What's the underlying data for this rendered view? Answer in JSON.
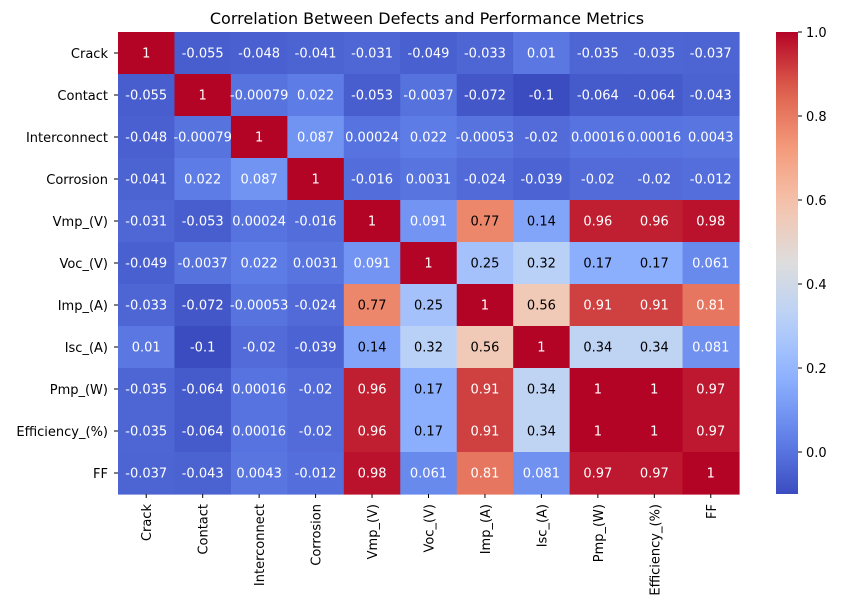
{
  "chart_data": {
    "type": "heatmap",
    "title": "Correlation Between Defects and Performance Metrics",
    "xlabel": "",
    "ylabel": "",
    "labels": [
      "Crack",
      "Contact",
      "Interconnect",
      "Corrosion",
      "Vmp_(V)",
      "Voc_(V)",
      "Imp_(A)",
      "Isc_(A)",
      "Pmp_(W)",
      "Efficiency_(%)",
      "FF"
    ],
    "values": [
      [
        1,
        -0.055,
        -0.048,
        -0.041,
        -0.031,
        -0.049,
        -0.033,
        0.01,
        -0.035,
        -0.035,
        -0.037
      ],
      [
        -0.055,
        1,
        -0.00079,
        0.022,
        -0.053,
        -0.0037,
        -0.072,
        -0.1,
        -0.064,
        -0.064,
        -0.043
      ],
      [
        -0.048,
        -0.00079,
        1,
        0.087,
        0.00024,
        0.022,
        -0.00053,
        -0.02,
        0.00016,
        0.00016,
        0.0043
      ],
      [
        -0.041,
        0.022,
        0.087,
        1,
        -0.016,
        0.0031,
        -0.024,
        -0.039,
        -0.02,
        -0.02,
        -0.012
      ],
      [
        -0.031,
        -0.053,
        0.00024,
        -0.016,
        1,
        0.091,
        0.77,
        0.14,
        0.96,
        0.96,
        0.98
      ],
      [
        -0.049,
        -0.0037,
        0.022,
        0.0031,
        0.091,
        1,
        0.25,
        0.32,
        0.17,
        0.17,
        0.061
      ],
      [
        -0.033,
        -0.072,
        -0.00053,
        -0.024,
        0.77,
        0.25,
        1,
        0.56,
        0.91,
        0.91,
        0.81
      ],
      [
        0.01,
        -0.1,
        -0.02,
        -0.039,
        0.14,
        0.32,
        0.56,
        1,
        0.34,
        0.34,
        0.081
      ],
      [
        -0.035,
        -0.064,
        0.00016,
        -0.02,
        0.96,
        0.17,
        0.91,
        0.34,
        1,
        1,
        0.97
      ],
      [
        -0.035,
        -0.064,
        0.00016,
        -0.02,
        0.96,
        0.17,
        0.91,
        0.34,
        1,
        1,
        0.97
      ],
      [
        -0.037,
        -0.043,
        0.0043,
        -0.012,
        0.98,
        0.061,
        0.81,
        0.081,
        0.97,
        0.97,
        1
      ]
    ],
    "cell_labels": [
      [
        "1",
        "-0.055",
        "-0.048",
        "-0.041",
        "-0.031",
        "-0.049",
        "-0.033",
        "0.01",
        "-0.035",
        "-0.035",
        "-0.037"
      ],
      [
        "-0.055",
        "1",
        "-0.00079",
        "0.022",
        "-0.053",
        "-0.0037",
        "-0.072",
        "-0.1",
        "-0.064",
        "-0.064",
        "-0.043"
      ],
      [
        "-0.048",
        "-0.00079",
        "1",
        "0.087",
        "0.00024",
        "0.022",
        "-0.00053",
        "-0.02",
        "0.00016",
        "0.00016",
        "0.0043"
      ],
      [
        "-0.041",
        "0.022",
        "0.087",
        "1",
        "-0.016",
        "0.0031",
        "-0.024",
        "-0.039",
        "-0.02",
        "-0.02",
        "-0.012"
      ],
      [
        "-0.031",
        "-0.053",
        "0.00024",
        "-0.016",
        "1",
        "0.091",
        "0.77",
        "0.14",
        "0.96",
        "0.96",
        "0.98"
      ],
      [
        "-0.049",
        "-0.0037",
        "0.022",
        "0.0031",
        "0.091",
        "1",
        "0.25",
        "0.32",
        "0.17",
        "0.17",
        "0.061"
      ],
      [
        "-0.033",
        "-0.072",
        "-0.00053",
        "-0.024",
        "0.77",
        "0.25",
        "1",
        "0.56",
        "0.91",
        "0.91",
        "0.81"
      ],
      [
        "0.01",
        "-0.1",
        "-0.02",
        "-0.039",
        "0.14",
        "0.32",
        "0.56",
        "1",
        "0.34",
        "0.34",
        "0.081"
      ],
      [
        "-0.035",
        "-0.064",
        "0.00016",
        "-0.02",
        "0.96",
        "0.17",
        "0.91",
        "0.34",
        "1",
        "1",
        "0.97"
      ],
      [
        "-0.035",
        "-0.064",
        "0.00016",
        "-0.02",
        "0.96",
        "0.17",
        "0.91",
        "0.34",
        "1",
        "1",
        "0.97"
      ],
      [
        "-0.037",
        "-0.043",
        "0.0043",
        "-0.012",
        "0.98",
        "0.061",
        "0.81",
        "0.081",
        "0.97",
        "0.97",
        "1"
      ]
    ],
    "colormap": "coolwarm",
    "colorbar": {
      "range": [
        -0.1,
        1.0
      ],
      "ticks": [
        "0.0",
        "0.2",
        "0.4",
        "0.6",
        "0.8",
        "1.0"
      ],
      "tick_values": [
        0.0,
        0.2,
        0.4,
        0.6,
        0.8,
        1.0
      ]
    },
    "grid": false
  }
}
